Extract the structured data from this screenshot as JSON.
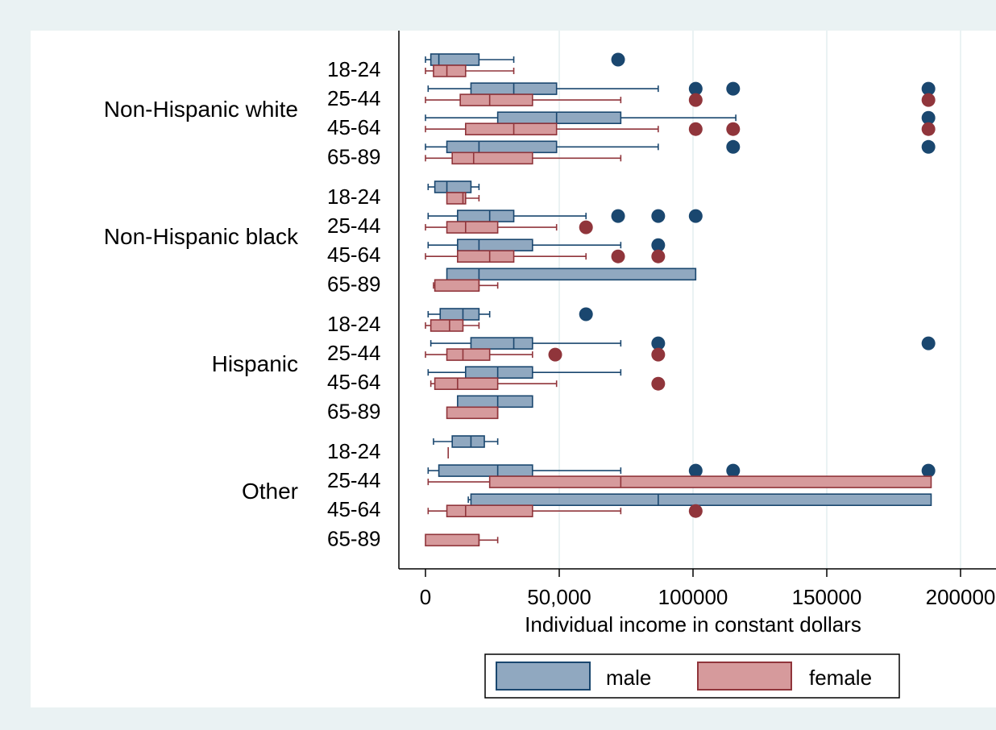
{
  "colors": {
    "outer_bg": "#eaf2f3",
    "plot_bg": "#ffffff",
    "grid": "#eaf2f3",
    "male_fill": "#90a8c0",
    "male_line": "#1a476f",
    "female_fill": "#d69a9c",
    "female_line": "#90353b"
  },
  "chart_data": {
    "type": "boxplot",
    "orientation": "horizontal",
    "title": "",
    "xlabel": "Individual income in constant dollars",
    "ylabel": "",
    "xlim": [
      -10000,
      210000
    ],
    "x_ticks": [
      {
        "value": 0,
        "label": "0"
      },
      {
        "value": 50000,
        "label": "50,000"
      },
      {
        "value": 100000,
        "label": "100000"
      },
      {
        "value": 150000,
        "label": "150000"
      },
      {
        "value": 200000,
        "label": "200000"
      }
    ],
    "grid": true,
    "legend": {
      "position": "bottom",
      "items": [
        {
          "key": "male",
          "label": "male"
        },
        {
          "key": "female",
          "label": "female"
        }
      ]
    },
    "groups": [
      {
        "label": "Non-Hispanic white",
        "rows": [
          {
            "label": "18-24",
            "male": {
              "whisker_low": 0,
              "q1": 2000,
              "median": 5000,
              "q3": 20000,
              "whisker_high": 33000,
              "outliers": [
                72000
              ]
            },
            "female": {
              "whisker_low": 0,
              "q1": 3000,
              "median": 8000,
              "q3": 15000,
              "whisker_high": 33000,
              "outliers": []
            }
          },
          {
            "label": "25-44",
            "male": {
              "whisker_low": 1000,
              "q1": 17000,
              "median": 33000,
              "q3": 49000,
              "whisker_high": 87000,
              "outliers": [
                101000,
                115000,
                188000
              ]
            },
            "female": {
              "whisker_low": 0,
              "q1": 13000,
              "median": 24000,
              "q3": 40000,
              "whisker_high": 73000,
              "outliers": [
                101000,
                188000
              ]
            }
          },
          {
            "label": "45-64",
            "male": {
              "whisker_low": 0,
              "q1": 27000,
              "median": 49000,
              "q3": 73000,
              "whisker_high": 116000,
              "outliers": [
                188000
              ]
            },
            "female": {
              "whisker_low": 0,
              "q1": 15000,
              "median": 33000,
              "q3": 49000,
              "whisker_high": 87000,
              "outliers": [
                101000,
                115000,
                188000
              ]
            }
          },
          {
            "label": "65-89",
            "male": {
              "whisker_low": 0,
              "q1": 8000,
              "median": 20000,
              "q3": 49000,
              "whisker_high": 87000,
              "outliers": [
                115000,
                188000
              ]
            },
            "female": {
              "whisker_low": 0,
              "q1": 10000,
              "median": 18000,
              "q3": 40000,
              "whisker_high": 73000,
              "outliers": []
            }
          }
        ]
      },
      {
        "label": "Non-Hispanic black",
        "rows": [
          {
            "label": "18-24",
            "male": {
              "whisker_low": 1000,
              "q1": 3500,
              "median": 8000,
              "q3": 17000,
              "whisker_high": 20000,
              "outliers": []
            },
            "female": {
              "whisker_low": 8000,
              "q1": 8000,
              "median": 14000,
              "q3": 15000,
              "whisker_high": 20000,
              "outliers": []
            }
          },
          {
            "label": "25-44",
            "male": {
              "whisker_low": 1000,
              "q1": 12000,
              "median": 24000,
              "q3": 33000,
              "whisker_high": 60000,
              "outliers": [
                72000,
                87000,
                101000
              ]
            },
            "female": {
              "whisker_low": 0,
              "q1": 8000,
              "median": 15000,
              "q3": 27000,
              "whisker_high": 49000,
              "outliers": [
                60000
              ]
            }
          },
          {
            "label": "45-64",
            "male": {
              "whisker_low": 1000,
              "q1": 12000,
              "median": 20000,
              "q3": 40000,
              "whisker_high": 73000,
              "outliers": [
                87000
              ]
            },
            "female": {
              "whisker_low": 0,
              "q1": 12000,
              "median": 24000,
              "q3": 33000,
              "whisker_high": 60000,
              "outliers": [
                72000,
                87000
              ]
            }
          },
          {
            "label": "65-89",
            "male": {
              "whisker_low": 8000,
              "q1": 8000,
              "median": 20000,
              "q3": 101000,
              "whisker_high": 101000,
              "outliers": []
            },
            "female": {
              "whisker_low": 3000,
              "q1": 3500,
              "median": 20000,
              "q3": 20000,
              "whisker_high": 27000,
              "outliers": []
            }
          }
        ]
      },
      {
        "label": "Hispanic",
        "rows": [
          {
            "label": "18-24",
            "male": {
              "whisker_low": 1000,
              "q1": 5500,
              "median": 14000,
              "q3": 20000,
              "whisker_high": 24000,
              "outliers": [
                60000
              ]
            },
            "female": {
              "whisker_low": 0,
              "q1": 2000,
              "median": 9000,
              "q3": 14000,
              "whisker_high": 20000,
              "outliers": []
            }
          },
          {
            "label": "25-44",
            "male": {
              "whisker_low": 2000,
              "q1": 17000,
              "median": 33000,
              "q3": 40000,
              "whisker_high": 73000,
              "outliers": [
                87000,
                188000
              ]
            },
            "female": {
              "whisker_low": 0,
              "q1": 8000,
              "median": 14000,
              "q3": 24000,
              "whisker_high": 40000,
              "outliers": [
                48500,
                87000
              ]
            }
          },
          {
            "label": "45-64",
            "male": {
              "whisker_low": 1000,
              "q1": 15000,
              "median": 27000,
              "q3": 40000,
              "whisker_high": 73000,
              "outliers": []
            },
            "female": {
              "whisker_low": 2000,
              "q1": 3500,
              "median": 12000,
              "q3": 27000,
              "whisker_high": 49000,
              "outliers": [
                87000
              ]
            }
          },
          {
            "label": "65-89",
            "male": {
              "whisker_low": 12000,
              "q1": 12000,
              "median": 27000,
              "q3": 40000,
              "whisker_high": 40000,
              "outliers": []
            },
            "female": {
              "whisker_low": 8000,
              "q1": 8000,
              "median": 27000,
              "q3": 27000,
              "whisker_high": 27000,
              "outliers": []
            }
          }
        ]
      },
      {
        "label": "Other",
        "rows": [
          {
            "label": "18-24",
            "male": {
              "whisker_low": 3000,
              "q1": 10000,
              "median": 17000,
              "q3": 22000,
              "whisker_high": 27000,
              "outliers": []
            },
            "female": {
              "whisker_low": 8500,
              "q1": 8500,
              "median": 8500,
              "q3": 8500,
              "whisker_high": 8500,
              "outliers": []
            }
          },
          {
            "label": "25-44",
            "male": {
              "whisker_low": 1000,
              "q1": 5000,
              "median": 27000,
              "q3": 40000,
              "whisker_high": 73000,
              "outliers": [
                101000,
                115000,
                188000
              ]
            },
            "female": {
              "whisker_low": 1000,
              "q1": 24000,
              "median": 73000,
              "q3": 189000,
              "whisker_high": 189000,
              "outliers": []
            }
          },
          {
            "label": "45-64",
            "male": {
              "whisker_low": 16000,
              "q1": 17000,
              "median": 87000,
              "q3": 189000,
              "whisker_high": 189000,
              "outliers": []
            },
            "female": {
              "whisker_low": 1000,
              "q1": 8000,
              "median": 15000,
              "q3": 40000,
              "whisker_high": 73000,
              "outliers": [
                101000
              ]
            }
          },
          {
            "label": "65-89",
            "male": null,
            "female": {
              "whisker_low": 0,
              "q1": 0,
              "median": 20000,
              "q3": 20000,
              "whisker_high": 27000,
              "outliers": []
            }
          }
        ]
      }
    ]
  }
}
